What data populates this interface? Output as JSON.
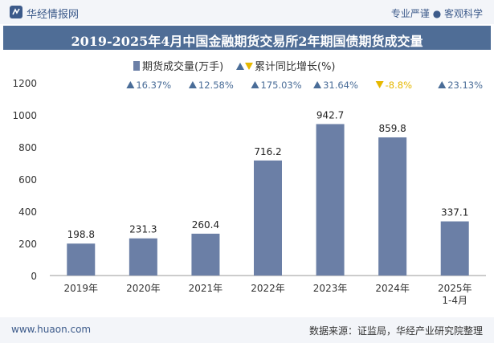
{
  "header": {
    "brand": "华经情报网",
    "tags": "专业严谨 ● 客观科学",
    "title": "2019-2025年4月中国金融期货交易所2年期国债期货成交量"
  },
  "footer": {
    "website": "www.huaon.com",
    "source": "数据来源：证监局，华经产业研究院整理"
  },
  "colors": {
    "bar": "#6b7fa6",
    "up": "#4a6d98",
    "down": "#e6b800",
    "title_bg": "#4f6d96"
  },
  "chart_data": {
    "type": "bar",
    "categories": [
      "2019年",
      "2020年",
      "2021年",
      "2022年",
      "2023年",
      "2024年",
      "2025年\n1-4月"
    ],
    "series": [
      {
        "name": "期货成交量(万手)",
        "values": [
          198.8,
          231.3,
          260.4,
          716.2,
          942.7,
          859.8,
          337.1
        ]
      },
      {
        "name": "累计同比增长(%)",
        "values": [
          null,
          16.37,
          12.58,
          175.03,
          31.64,
          -8.8,
          23.13
        ]
      }
    ],
    "bar_labels": [
      "198.8",
      "231.3",
      "260.4",
      "716.2",
      "942.7",
      "859.8",
      "337.1"
    ],
    "growth_labels": [
      "",
      "16.37%",
      "12.58%",
      "175.03%",
      "31.64%",
      "-8.8%",
      "23.13%"
    ],
    "yticks": [
      "0",
      "200",
      "400",
      "600",
      "800",
      "1000",
      "1200"
    ],
    "ylim": [
      0,
      1200
    ],
    "legend_position": "top-center"
  }
}
